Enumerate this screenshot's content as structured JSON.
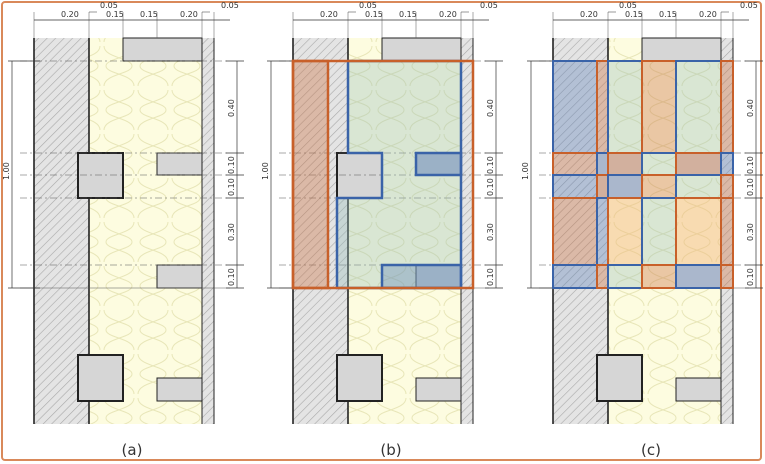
{
  "panels": [
    {
      "id": "a",
      "caption": "(a)"
    },
    {
      "id": "b",
      "caption": "(b)"
    },
    {
      "id": "c",
      "caption": "(c)"
    }
  ],
  "top_dimensions": [
    "0.20",
    "0.05",
    "0.15",
    "0.15",
    "0.20",
    "0.05"
  ],
  "right_dimensions": [
    "0.40",
    "0.10",
    "0.10",
    "0.30",
    "0.10"
  ],
  "left_dimension": "1.00",
  "colors": {
    "frame": "#d9895a",
    "insulation": "#fdfce0",
    "wall_hatch": "#c8c8c8",
    "orange_outline": "#c8602a",
    "orange_fill": "rgba(205,120,75,0.40)",
    "blue_outline": "#3a63a8",
    "blue_fill": "rgba(90,125,185,0.35)",
    "light_orange_fill": "rgba(242,180,120,0.45)",
    "teal_fill": "rgba(150,190,185,0.35)"
  }
}
